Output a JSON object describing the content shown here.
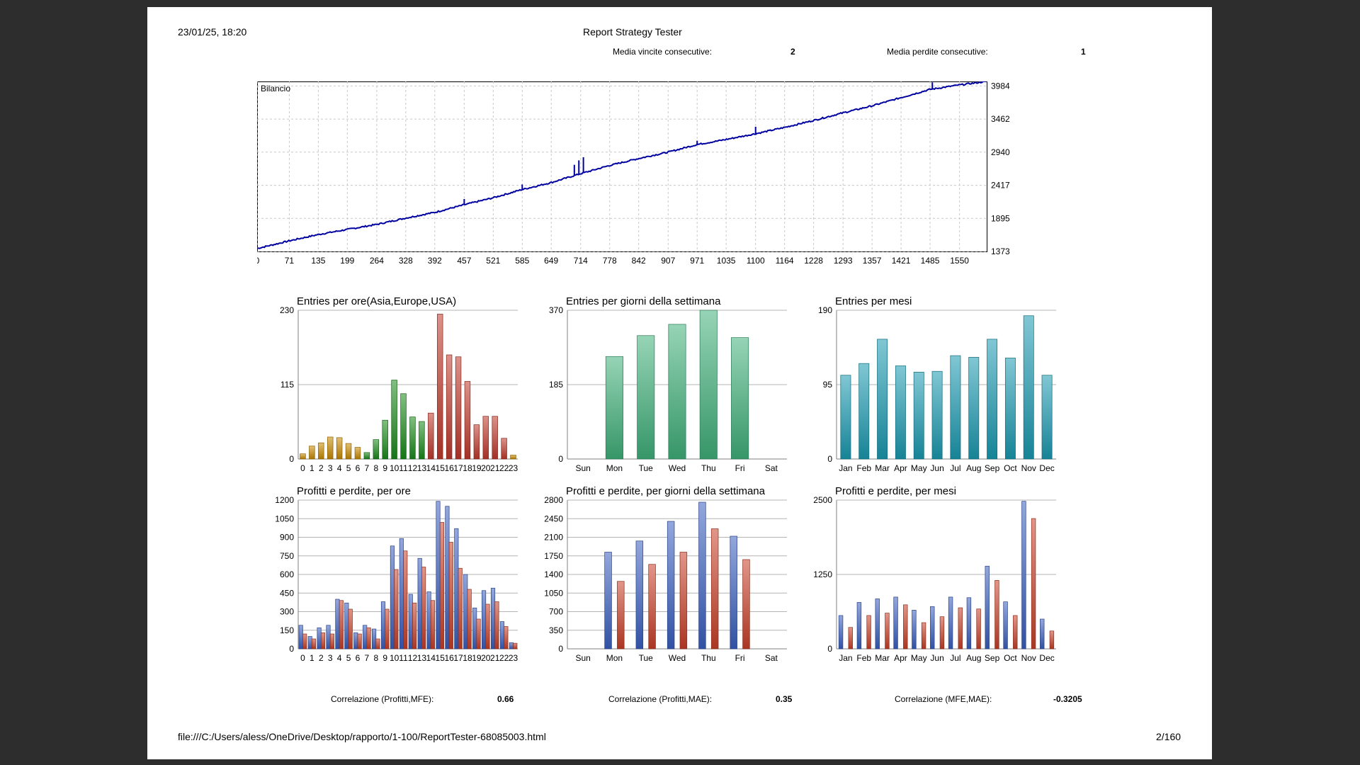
{
  "report": {
    "datetime": "23/01/25, 18:20",
    "title": "Report Strategy Tester",
    "footer_path": "file:///C:/Users/aless/OneDrive/Desktop/rapporto/1-100/ReportTester-68085003.html",
    "page": "2/160"
  },
  "stats_top": [
    {
      "label": "Media vincite consecutive:",
      "value": "2"
    },
    {
      "label": "Media perdite consecutive:",
      "value": "1"
    }
  ],
  "stats_bottom": [
    {
      "label": "Correlazione (Profitti,MFE):",
      "value": "0.66"
    },
    {
      "label": "Correlazione (Profitti,MAE):",
      "value": "0.35"
    },
    {
      "label": "Correlazione (MFE,MAE):",
      "value": "-0.3205"
    }
  ],
  "colors": {
    "balance": "#0000a0",
    "asia": "#c88a00",
    "europe": "#1a8a1a",
    "usa": "#c0392b",
    "weekday": "#40b07a",
    "month": "#1a9ab0",
    "profit": "#3a5fc0",
    "loss": "#c84028"
  },
  "chart_data": [
    {
      "id": "balance",
      "type": "line",
      "title": "Bilancio",
      "x_ticks": [
        "0",
        "71",
        "135",
        "199",
        "264",
        "328",
        "392",
        "457",
        "521",
        "585",
        "649",
        "714",
        "778",
        "842",
        "907",
        "971",
        "1035",
        "1100",
        "1164",
        "1228",
        "1293",
        "1357",
        "1421",
        "1485",
        "1550"
      ],
      "y_ticks": [
        "3984",
        "3462",
        "2940",
        "2417",
        "1895",
        "1373"
      ],
      "xlim": [
        0,
        1610
      ],
      "ylim": [
        1373,
        4055
      ],
      "series": [
        {
          "x": [
            0,
            71,
            135,
            199,
            264,
            328,
            392,
            457,
            521,
            585,
            649,
            714,
            778,
            842,
            907,
            971,
            1035,
            1100,
            1164,
            1228,
            1293,
            1357,
            1421,
            1485,
            1550,
            1610
          ],
          "y": [
            1420,
            1540,
            1640,
            1720,
            1800,
            1900,
            1990,
            2110,
            2220,
            2350,
            2460,
            2600,
            2730,
            2840,
            2940,
            3060,
            3140,
            3230,
            3330,
            3440,
            3560,
            3670,
            3800,
            3930,
            4000,
            4055
          ]
        }
      ],
      "spikes": [
        {
          "x": 457,
          "y": 2200
        },
        {
          "x": 585,
          "y": 2430
        },
        {
          "x": 700,
          "y": 2740
        },
        {
          "x": 710,
          "y": 2810
        },
        {
          "x": 720,
          "y": 2860
        },
        {
          "x": 971,
          "y": 3120
        },
        {
          "x": 1100,
          "y": 3340
        },
        {
          "x": 1490,
          "y": 4040
        }
      ]
    },
    {
      "id": "entries_hours",
      "type": "bar",
      "title": "Entries per ore(Asia,Europe,USA)",
      "categories": [
        "0",
        "1",
        "2",
        "3",
        "4",
        "5",
        "6",
        "7",
        "8",
        "9",
        "10",
        "11",
        "12",
        "13",
        "14",
        "15",
        "16",
        "17",
        "18",
        "19",
        "20",
        "21",
        "22",
        "23"
      ],
      "values": [
        8,
        20,
        25,
        34,
        33,
        24,
        18,
        10,
        30,
        60,
        122,
        101,
        65,
        58,
        71,
        224,
        161,
        158,
        120,
        53,
        66,
        66,
        32,
        6
      ],
      "group_colors": [
        "asia",
        "asia",
        "asia",
        "asia",
        "asia",
        "asia",
        "asia",
        "europe",
        "europe",
        "europe",
        "europe",
        "europe",
        "europe",
        "europe",
        "usa",
        "usa",
        "usa",
        "usa",
        "usa",
        "usa",
        "usa",
        "usa",
        "usa",
        "asia"
      ],
      "ylim": [
        0,
        230
      ],
      "y_ticks": [
        "230",
        "115",
        "0"
      ]
    },
    {
      "id": "entries_weekday",
      "type": "bar",
      "title": "Entries per giorni della settimana",
      "categories": [
        "Sun",
        "Mon",
        "Tue",
        "Wed",
        "Thu",
        "Fri",
        "Sat"
      ],
      "values": [
        0,
        255,
        307,
        335,
        370,
        302,
        0
      ],
      "ylim": [
        0,
        370
      ],
      "y_ticks": [
        "370",
        "185",
        "0"
      ]
    },
    {
      "id": "entries_month",
      "type": "bar",
      "title": "Entries per mesi",
      "categories": [
        "Jan",
        "Feb",
        "Mar",
        "Apr",
        "May",
        "Jun",
        "Jul",
        "Aug",
        "Sep",
        "Oct",
        "Nov",
        "Dec"
      ],
      "values": [
        107,
        122,
        153,
        119,
        111,
        112,
        132,
        130,
        153,
        129,
        183,
        107
      ],
      "ylim": [
        0,
        190
      ],
      "y_ticks": [
        "190",
        "95",
        "0"
      ]
    },
    {
      "id": "pl_hours",
      "type": "bar",
      "title": "Profitti e perdite, per ore",
      "categories": [
        "0",
        "1",
        "2",
        "3",
        "4",
        "5",
        "6",
        "7",
        "8",
        "9",
        "10",
        "11",
        "12",
        "13",
        "14",
        "15",
        "16",
        "17",
        "18",
        "19",
        "20",
        "21",
        "22",
        "23"
      ],
      "series": [
        {
          "values": [
            190,
            100,
            170,
            190,
            400,
            370,
            130,
            190,
            160,
            380,
            830,
            890,
            440,
            730,
            460,
            1190,
            1150,
            970,
            600,
            330,
            470,
            490,
            220,
            50
          ]
        },
        {
          "values": [
            120,
            80,
            130,
            120,
            390,
            320,
            120,
            170,
            80,
            320,
            640,
            790,
            370,
            660,
            390,
            1020,
            860,
            650,
            480,
            240,
            360,
            380,
            180,
            45
          ]
        }
      ],
      "ylim": [
        0,
        1200
      ],
      "y_ticks": [
        "1200",
        "1050",
        "900",
        "750",
        "600",
        "450",
        "300",
        "150",
        "0"
      ]
    },
    {
      "id": "pl_weekday",
      "type": "bar",
      "title": "Profitti e perdite, per giorni della settimana",
      "categories": [
        "Sun",
        "Mon",
        "Tue",
        "Wed",
        "Thu",
        "Fri",
        "Sat"
      ],
      "series": [
        {
          "values": [
            0,
            1820,
            2030,
            2400,
            2760,
            2120,
            0
          ]
        },
        {
          "values": [
            0,
            1270,
            1590,
            1820,
            2260,
            1680,
            0
          ]
        }
      ],
      "ylim": [
        0,
        2800
      ],
      "y_ticks": [
        "2800",
        "2450",
        "2100",
        "1750",
        "1400",
        "1050",
        "700",
        "350",
        "0"
      ]
    },
    {
      "id": "pl_month",
      "type": "bar",
      "title": "Profitti e perdite, per mesi",
      "categories": [
        "Jan",
        "Feb",
        "Mar",
        "Apr",
        "May",
        "Jun",
        "Jul",
        "Aug",
        "Sep",
        "Oct",
        "Nov",
        "Dec"
      ],
      "series": [
        {
          "values": [
            560,
            780,
            840,
            870,
            650,
            710,
            870,
            860,
            1390,
            790,
            2480,
            500
          ]
        },
        {
          "values": [
            360,
            560,
            600,
            740,
            440,
            540,
            690,
            670,
            1150,
            560,
            2190,
            300
          ]
        }
      ],
      "ylim": [
        0,
        2500
      ],
      "y_ticks": [
        "2500",
        "1250",
        "0"
      ]
    }
  ]
}
